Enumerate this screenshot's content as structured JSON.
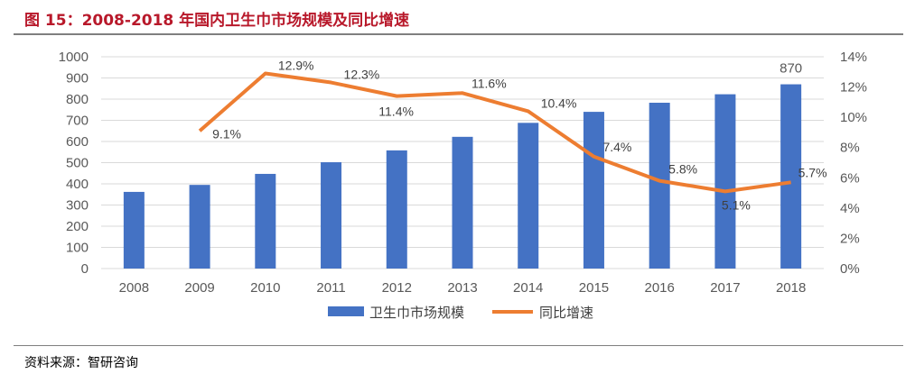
{
  "title": "图 15：2008-2018 年国内卫生巾市场规模及同比增速",
  "source": "资料来源：智研咨询",
  "chart_data": {
    "type": "bar+line",
    "categories": [
      "2008",
      "2009",
      "2010",
      "2011",
      "2012",
      "2013",
      "2014",
      "2015",
      "2016",
      "2017",
      "2018"
    ],
    "series": [
      {
        "name": "卫生巾市场规模",
        "type": "bar",
        "axis": "left",
        "color": "#4472c4",
        "values": [
          362,
          395,
          447,
          502,
          558,
          622,
          688,
          740,
          783,
          823,
          870
        ],
        "data_labels": [
          null,
          null,
          null,
          null,
          null,
          null,
          null,
          null,
          null,
          null,
          "870"
        ]
      },
      {
        "name": "同比增速",
        "type": "line",
        "axis": "right",
        "color": "#ed7d31",
        "values": [
          null,
          9.1,
          12.9,
          12.3,
          11.4,
          11.6,
          10.4,
          7.4,
          5.8,
          5.1,
          5.7
        ],
        "data_labels": [
          null,
          "9.1%",
          "12.9%",
          "12.3%",
          "11.4%",
          "11.6%",
          "10.4%",
          "7.4%",
          "5.8%",
          "5.1%",
          "5.7%"
        ]
      }
    ],
    "y_left": {
      "range": [
        0,
        1000
      ],
      "ticks": [
        "0",
        "100",
        "200",
        "300",
        "400",
        "500",
        "600",
        "700",
        "800",
        "900",
        "1000"
      ]
    },
    "y_right": {
      "range": [
        0,
        14
      ],
      "ticks": [
        "0%",
        "2%",
        "4%",
        "6%",
        "8%",
        "10%",
        "12%",
        "14%"
      ]
    },
    "grid": true,
    "legend": "bottom"
  }
}
